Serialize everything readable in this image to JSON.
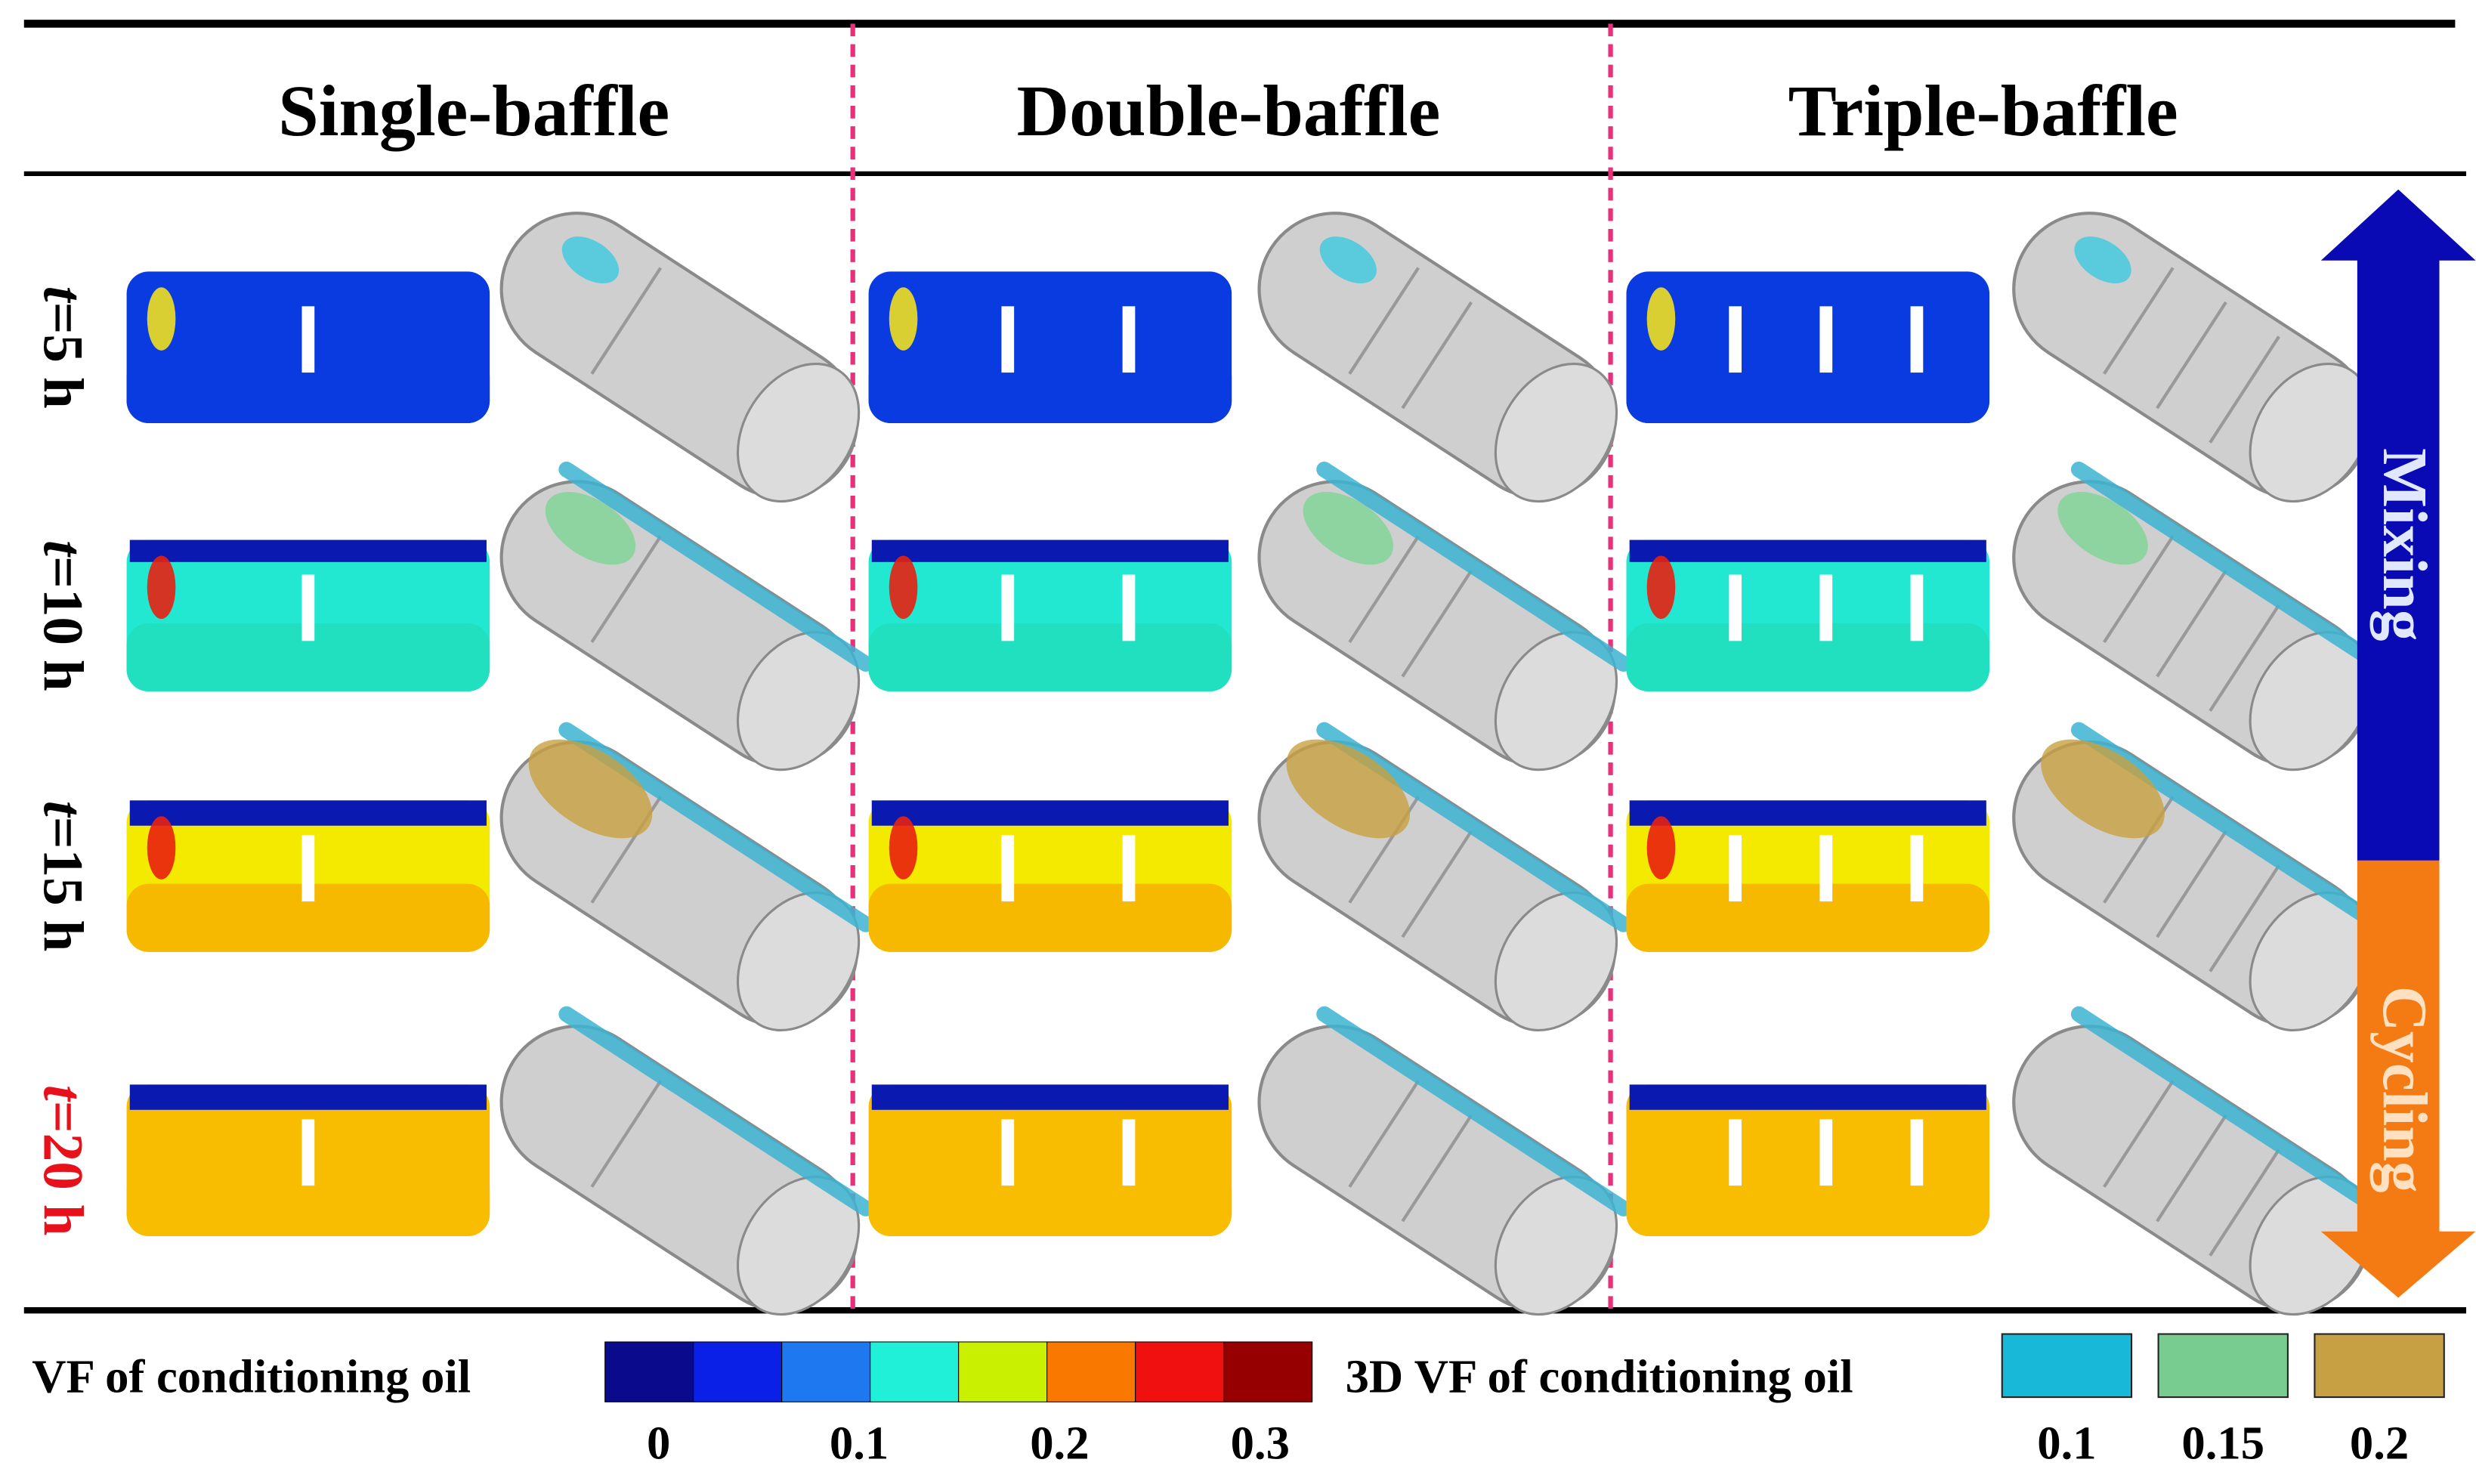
{
  "columns": [
    "Single-baffle",
    "Double-baffle",
    "Triple-baffle"
  ],
  "rows": [
    {
      "var": "t",
      "text": "=5 h"
    },
    {
      "var": "t",
      "text": "=10 h"
    },
    {
      "var": "t",
      "text": "=15 h"
    },
    {
      "var": "t",
      "text": "=20 h"
    }
  ],
  "legend": {
    "title": "VF of conditioning oil",
    "ticks": [
      "0",
      "0.1",
      "0.2",
      "0.3"
    ]
  },
  "legend_3d": {
    "title": "3D VF of conditioning oil",
    "labels": [
      "0.1",
      "0.15",
      "0.2"
    ]
  },
  "arrow": {
    "top": "Mixing",
    "bottom": "Cycling"
  }
}
